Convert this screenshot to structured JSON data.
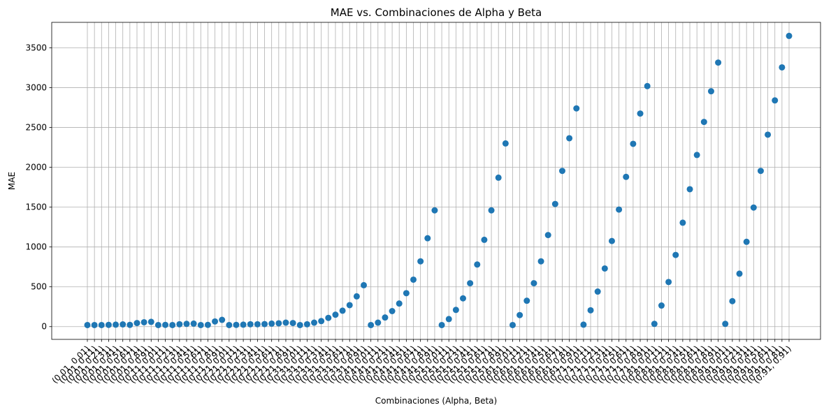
{
  "chart_data": {
    "type": "scatter",
    "title": "MAE vs. Combinaciones de Alpha y Beta",
    "xlabel": "Combinaciones (Alpha, Beta)",
    "ylabel": "MAE",
    "ylim": [
      -160,
      3820
    ],
    "yticks": [
      0,
      500,
      1000,
      1500,
      2000,
      2500,
      3000,
      3500
    ],
    "grid": true,
    "legend": "none",
    "color": "#1f77b4",
    "categories": [
      "(0.01, 0.01)",
      "(0.01, 0.11)",
      "(0.01, 0.21)",
      "(0.01, 0.31)",
      "(0.01, 0.41)",
      "(0.01, 0.51)",
      "(0.01, 0.61)",
      "(0.01, 0.71)",
      "(0.01, 0.81)",
      "(0.01, 0.91)",
      "(0.11, 0.01)",
      "(0.11, 0.11)",
      "(0.11, 0.21)",
      "(0.11, 0.31)",
      "(0.11, 0.41)",
      "(0.11, 0.51)",
      "(0.11, 0.61)",
      "(0.11, 0.71)",
      "(0.11, 0.81)",
      "(0.11, 0.91)",
      "(0.21, 0.01)",
      "(0.21, 0.11)",
      "(0.21, 0.21)",
      "(0.21, 0.31)",
      "(0.21, 0.41)",
      "(0.21, 0.51)",
      "(0.21, 0.61)",
      "(0.21, 0.71)",
      "(0.21, 0.81)",
      "(0.21, 0.91)",
      "(0.31, 0.01)",
      "(0.31, 0.11)",
      "(0.31, 0.21)",
      "(0.31, 0.31)",
      "(0.31, 0.41)",
      "(0.31, 0.51)",
      "(0.31, 0.61)",
      "(0.31, 0.71)",
      "(0.31, 0.81)",
      "(0.31, 0.91)",
      "(0.41, 0.01)",
      "(0.41, 0.11)",
      "(0.41, 0.21)",
      "(0.41, 0.31)",
      "(0.41, 0.41)",
      "(0.41, 0.51)",
      "(0.41, 0.61)",
      "(0.41, 0.71)",
      "(0.41, 0.81)",
      "(0.41, 0.91)",
      "(0.51, 0.01)",
      "(0.51, 0.11)",
      "(0.51, 0.21)",
      "(0.51, 0.31)",
      "(0.51, 0.41)",
      "(0.51, 0.51)",
      "(0.51, 0.61)",
      "(0.51, 0.71)",
      "(0.51, 0.81)",
      "(0.51, 0.91)",
      "(0.61, 0.01)",
      "(0.61, 0.11)",
      "(0.61, 0.21)",
      "(0.61, 0.31)",
      "(0.61, 0.41)",
      "(0.61, 0.51)",
      "(0.61, 0.61)",
      "(0.61, 0.71)",
      "(0.61, 0.81)",
      "(0.61, 0.91)",
      "(0.71, 0.01)",
      "(0.71, 0.11)",
      "(0.71, 0.21)",
      "(0.71, 0.31)",
      "(0.71, 0.41)",
      "(0.71, 0.51)",
      "(0.71, 0.61)",
      "(0.71, 0.71)",
      "(0.71, 0.81)",
      "(0.71, 0.91)",
      "(0.81, 0.01)",
      "(0.81, 0.11)",
      "(0.81, 0.21)",
      "(0.81, 0.31)",
      "(0.81, 0.41)",
      "(0.81, 0.51)",
      "(0.81, 0.61)",
      "(0.81, 0.71)",
      "(0.81, 0.81)",
      "(0.81, 0.91)",
      "(0.91, 0.01)",
      "(0.91, 0.11)",
      "(0.91, 0.21)",
      "(0.91, 0.31)",
      "(0.91, 0.41)",
      "(0.91, 0.51)",
      "(0.91, 0.61)",
      "(0.91, 0.71)",
      "(0.91, 0.81)",
      "(0.91, 0.91)"
    ],
    "values": [
      20,
      20,
      20,
      22,
      25,
      28,
      22,
      45,
      55,
      60,
      20,
      22,
      20,
      30,
      35,
      38,
      20,
      22,
      65,
      85,
      20,
      22,
      25,
      30,
      30,
      32,
      38,
      42,
      50,
      45,
      20,
      30,
      50,
      70,
      110,
      150,
      200,
      270,
      380,
      520,
      20,
      50,
      115,
      195,
      290,
      420,
      590,
      820,
      1110,
      1460,
      20,
      95,
      210,
      355,
      545,
      780,
      1090,
      1460,
      1870,
      2300,
      20,
      145,
      325,
      545,
      820,
      1150,
      1540,
      1955,
      2365,
      2740,
      25,
      205,
      440,
      730,
      1075,
      1470,
      1880,
      2295,
      2675,
      3020,
      35,
      265,
      560,
      900,
      1305,
      1725,
      2155,
      2570,
      2955,
      3315,
      35,
      320,
      665,
      1065,
      1495,
      1955,
      2410,
      2840,
      3255,
      3650
    ]
  }
}
